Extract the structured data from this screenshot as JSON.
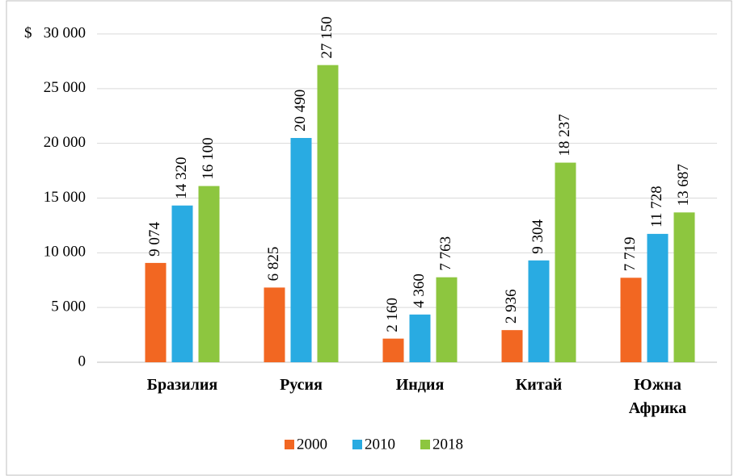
{
  "chart_data": {
    "type": "bar",
    "y_label": "$",
    "categories": [
      "Бразилия",
      "Русия",
      "Индия",
      "Китай",
      "Южна Африка"
    ],
    "series": [
      {
        "name": "2000",
        "color": "#f26722",
        "values": [
          9074,
          6825,
          2160,
          2936,
          7719
        ],
        "value_labels": [
          "9 074",
          "6 825",
          "2 160",
          "2 936",
          "7 719"
        ]
      },
      {
        "name": "2010",
        "color": "#29abe2",
        "values": [
          14320,
          20490,
          4360,
          9304,
          11728
        ],
        "value_labels": [
          "14 320",
          "20 490",
          "4 360",
          "9 304",
          "11 728"
        ]
      },
      {
        "name": "2018",
        "color": "#8dc63f",
        "values": [
          16100,
          27150,
          7763,
          18237,
          13687
        ],
        "value_labels": [
          "16 100",
          "27 150",
          "7 763",
          "18 237",
          "13 687"
        ]
      }
    ],
    "ylim": [
      0,
      30000
    ],
    "yticks": [
      0,
      {
        "value": 5000,
        "label": "5 000"
      },
      {
        "value": 10000,
        "label": "10 000"
      },
      {
        "value": 15000,
        "label": "15 000"
      },
      {
        "value": 20000,
        "label": "20 000"
      },
      {
        "value": 25000,
        "label": "25 000"
      },
      {
        "value": 30000,
        "label": "30 000"
      }
    ],
    "grid": true,
    "legend": "bottom"
  }
}
